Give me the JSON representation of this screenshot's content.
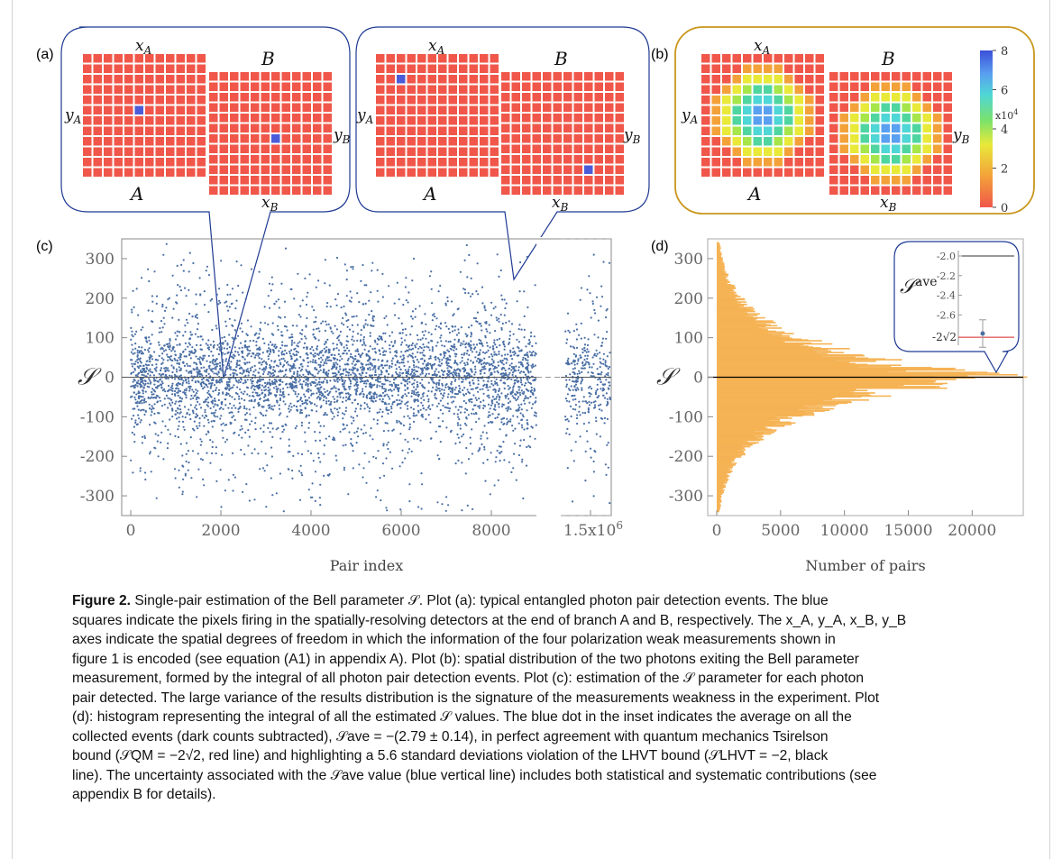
{
  "panel_labels": {
    "a": "(a)",
    "b": "(b)",
    "c": "(c)",
    "d": "(d)"
  },
  "detector_labels": {
    "xA": "x",
    "xA_sub": "A",
    "yA": "y",
    "yA_sub": "A",
    "xB": "x",
    "xB_sub": "B",
    "yB": "y",
    "yB_sub": "B",
    "A": "A",
    "B": "B"
  },
  "colorbar": {
    "ticks": [
      "0",
      "2",
      "4",
      "6",
      "8"
    ],
    "multiplier": "x10",
    "exponent": "4"
  },
  "colors": {
    "pixel_red": "#f0574a",
    "pixel_blue": "#4a5cd8",
    "bubble_blue": "#1f3a93",
    "bubble_gold": "#c9961a",
    "scatter": "#4a6fa5",
    "hist": "#f5b355",
    "red_line": "#d62728"
  },
  "chart_data": [
    {
      "type": "scatter",
      "title": "",
      "xlabel": "Pair index",
      "ylabel": "S",
      "xticks": [
        "0",
        "2000",
        "4000",
        "6000",
        "8000",
        "1.5x10^6"
      ],
      "yticks": [
        "300",
        "200",
        "100",
        "0",
        "-100",
        "-200",
        "-300"
      ],
      "ylim": [
        -350,
        350
      ],
      "xlim": [
        0,
        9400
      ],
      "note": "Scatter of per-pair S estimates, dense near 0, spread roughly -350 to 350"
    },
    {
      "type": "bar",
      "orientation": "horizontal",
      "xlabel": "Number of pairs",
      "ylabel": "S",
      "xticks": [
        "0",
        "5000",
        "10000",
        "15000",
        "20000"
      ],
      "yticks": [
        "300",
        "200",
        "100",
        "0",
        "-100",
        "-200",
        "-300"
      ],
      "ylim": [
        -350,
        350
      ],
      "xlim": [
        0,
        24000
      ],
      "inset": {
        "ylabel": "S",
        "ylabel_sup": "ave",
        "yticks": [
          "-2.0",
          "-2.2",
          "-2.4",
          "-2.6"
        ],
        "ytick_special": "-2√2",
        "mean": -2.79,
        "error": 0.14,
        "lhvt_bound": -2,
        "qm_bound": -2.83
      }
    }
  ],
  "caption": {
    "figure_label": "Figure 2.",
    "title": " Single-pair estimation of the Bell parameter S. Plot (a): typical entangled photon pair detection events. The blue squares indicate the pixels firing in the spatially-resolving detectors at the end of branch A and B, respectively. The x",
    "lines": [
      "Figure 2. Single-pair estimation of the Bell parameter 𝒮. Plot (a): typical entangled photon pair detection events. The blue",
      "squares indicate the pixels firing in the spatially-resolving detectors at the end of branch A and B, respectively. The x_A, y_A, x_B, y_B",
      "axes indicate the spatial degrees of freedom in which the information of the four polarization weak measurements shown in",
      "figure 1 is encoded (see equation (A1) in appendix A). Plot (b): spatial distribution of the two photons exiting the Bell parameter",
      "measurement, formed by the integral of all photon pair detection events. Plot (c): estimation of the 𝒮 parameter for each photon",
      "pair detected. The large variance of the results distribution is the signature of the measurements weakness in the experiment. Plot",
      "(d): histogram representing the integral of all the estimated 𝒮 values. The blue dot in the inset indicates the average on all the",
      "collected events (dark counts subtracted), 𝒮ave = −(2.79 ± 0.14), in perfect agreement with quantum mechanics Tsirelson",
      "bound (𝒮QM = −2√2, red line) and highlighting a 5.6 standard deviations violation of the LHVT bound (𝒮LHVT = −2, black",
      "line). The uncertainty associated with the 𝒮ave value (blue vertical line) includes both statistical and systematic contributions (see",
      "appendix B for details)."
    ]
  }
}
